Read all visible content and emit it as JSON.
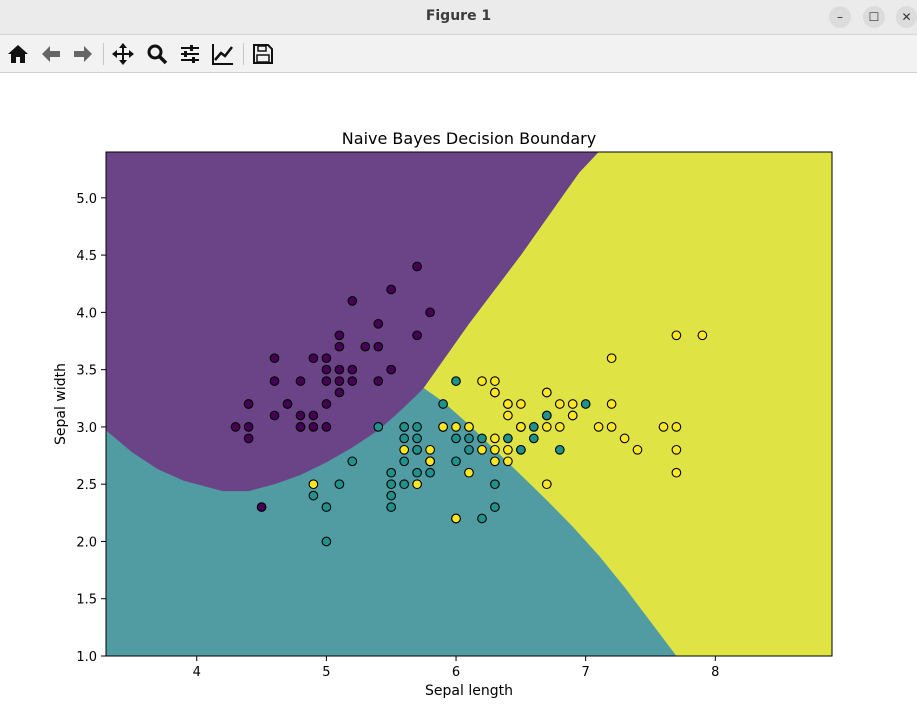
{
  "window": {
    "title": "Figure 1",
    "controls": {
      "minimize": "–",
      "maximize": "☐",
      "close": "✕"
    }
  },
  "toolbar": {
    "icons": [
      "home-icon",
      "back-arrow-icon",
      "forward-arrow-icon",
      "pan-icon",
      "zoom-icon",
      "configure-subplots-icon",
      "edit-axis-icon",
      "save-icon"
    ]
  },
  "chart_data": {
    "type": "scatter",
    "title": "Naive Bayes Decision Boundary",
    "xlabel": "Sepal length",
    "ylabel": "Sepal width",
    "xlim": [
      3.3,
      8.9
    ],
    "ylim": [
      1.0,
      5.4
    ],
    "xticks": [
      4,
      5,
      6,
      7,
      8
    ],
    "yticks": [
      1.0,
      1.5,
      2.0,
      2.5,
      3.0,
      3.5,
      4.0,
      4.5,
      5.0
    ],
    "grid": false,
    "colors": {
      "class0": "#440154",
      "class1": "#21918c",
      "class2": "#fde725",
      "region0": "#6a4487",
      "region1": "#519ba3",
      "region2": "#dfe444",
      "edge": "#000000"
    },
    "region_boundaries": {
      "class0_lower": [
        [
          3.3,
          2.97
        ],
        [
          3.5,
          2.78
        ],
        [
          3.7,
          2.63
        ],
        [
          3.9,
          2.53
        ],
        [
          4.1,
          2.47
        ],
        [
          4.2,
          2.44
        ],
        [
          4.4,
          2.44
        ],
        [
          4.6,
          2.5
        ],
        [
          4.8,
          2.58
        ],
        [
          5.0,
          2.69
        ],
        [
          5.2,
          2.82
        ],
        [
          5.4,
          2.97
        ],
        [
          5.55,
          3.12
        ],
        [
          5.7,
          3.28
        ],
        [
          5.75,
          3.34
        ],
        [
          5.95,
          3.66
        ],
        [
          6.1,
          3.9
        ],
        [
          6.3,
          4.2
        ],
        [
          6.5,
          4.5
        ],
        [
          6.7,
          4.82
        ],
        [
          6.95,
          5.22
        ],
        [
          7.1,
          5.4
        ]
      ],
      "class1_class2": [
        [
          5.75,
          3.34
        ],
        [
          5.9,
          3.22
        ],
        [
          6.1,
          3.02
        ],
        [
          6.3,
          2.8
        ],
        [
          6.5,
          2.58
        ],
        [
          6.7,
          2.36
        ],
        [
          6.9,
          2.13
        ],
        [
          7.1,
          1.88
        ],
        [
          7.3,
          1.6
        ],
        [
          7.5,
          1.3
        ],
        [
          7.7,
          1.0
        ]
      ]
    },
    "series": [
      {
        "class": 0,
        "points": [
          [
            5.1,
            3.5
          ],
          [
            4.9,
            3.0
          ],
          [
            4.7,
            3.2
          ],
          [
            4.6,
            3.1
          ],
          [
            5.0,
            3.6
          ],
          [
            5.4,
            3.9
          ],
          [
            4.6,
            3.4
          ],
          [
            5.0,
            3.4
          ],
          [
            4.4,
            2.9
          ],
          [
            4.9,
            3.1
          ],
          [
            5.4,
            3.7
          ],
          [
            4.8,
            3.4
          ],
          [
            4.8,
            3.0
          ],
          [
            4.3,
            3.0
          ],
          [
            5.8,
            4.0
          ],
          [
            5.7,
            4.4
          ],
          [
            5.1,
            3.8
          ],
          [
            5.7,
            3.8
          ],
          [
            5.4,
            3.4
          ],
          [
            4.6,
            3.6
          ],
          [
            5.1,
            3.3
          ],
          [
            5.0,
            3.0
          ],
          [
            5.2,
            3.5
          ],
          [
            5.2,
            3.4
          ],
          [
            4.7,
            3.2
          ],
          [
            4.8,
            3.1
          ],
          [
            5.2,
            4.1
          ],
          [
            5.5,
            4.2
          ],
          [
            5.0,
            3.2
          ],
          [
            5.5,
            3.5
          ],
          [
            4.4,
            3.0
          ],
          [
            4.5,
            2.3
          ],
          [
            4.4,
            3.2
          ],
          [
            5.0,
            3.5
          ],
          [
            5.3,
            3.7
          ],
          [
            5.1,
            3.7
          ],
          [
            4.9,
            3.6
          ],
          [
            4.8,
            3.0
          ],
          [
            5.1,
            3.4
          ],
          [
            4.4,
            3.2
          ]
        ]
      },
      {
        "class": 1,
        "points": [
          [
            7.0,
            3.2
          ],
          [
            6.4,
            3.2
          ],
          [
            6.9,
            3.1
          ],
          [
            5.5,
            2.3
          ],
          [
            6.5,
            2.8
          ],
          [
            5.7,
            2.8
          ],
          [
            6.3,
            3.3
          ],
          [
            4.9,
            2.4
          ],
          [
            6.6,
            2.9
          ],
          [
            5.2,
            2.7
          ],
          [
            5.0,
            2.0
          ],
          [
            5.9,
            3.0
          ],
          [
            6.0,
            2.2
          ],
          [
            6.1,
            2.9
          ],
          [
            5.6,
            2.9
          ],
          [
            6.7,
            3.1
          ],
          [
            5.6,
            3.0
          ],
          [
            5.8,
            2.7
          ],
          [
            6.2,
            2.2
          ],
          [
            5.6,
            2.5
          ],
          [
            5.9,
            3.2
          ],
          [
            6.1,
            2.8
          ],
          [
            6.3,
            2.5
          ],
          [
            6.4,
            2.9
          ],
          [
            6.6,
            3.0
          ],
          [
            6.8,
            2.8
          ],
          [
            6.0,
            2.9
          ],
          [
            5.7,
            2.6
          ],
          [
            5.5,
            2.4
          ],
          [
            5.5,
            2.5
          ],
          [
            5.8,
            2.7
          ],
          [
            6.0,
            2.7
          ],
          [
            5.4,
            3.0
          ],
          [
            6.0,
            3.4
          ],
          [
            6.7,
            3.1
          ],
          [
            6.3,
            2.3
          ],
          [
            5.6,
            3.0
          ],
          [
            5.5,
            2.6
          ],
          [
            6.1,
            3.0
          ],
          [
            5.8,
            2.6
          ],
          [
            5.0,
            2.3
          ],
          [
            5.6,
            2.7
          ],
          [
            5.7,
            3.0
          ],
          [
            5.7,
            2.9
          ],
          [
            6.2,
            2.9
          ],
          [
            5.1,
            2.5
          ],
          [
            5.7,
            2.8
          ],
          [
            6.5,
            2.8
          ]
        ]
      },
      {
        "class": 2,
        "points": [
          [
            6.3,
            3.3
          ],
          [
            5.8,
            2.7
          ],
          [
            7.1,
            3.0
          ],
          [
            6.3,
            2.9
          ],
          [
            6.5,
            3.0
          ],
          [
            7.6,
            3.0
          ],
          [
            4.9,
            2.5
          ],
          [
            7.3,
            2.9
          ],
          [
            6.7,
            2.5
          ],
          [
            7.2,
            3.6
          ],
          [
            6.5,
            3.2
          ],
          [
            6.4,
            2.7
          ],
          [
            6.8,
            3.0
          ],
          [
            5.7,
            2.5
          ],
          [
            5.8,
            2.8
          ],
          [
            6.4,
            3.2
          ],
          [
            6.5,
            3.0
          ],
          [
            7.7,
            3.8
          ],
          [
            7.7,
            2.6
          ],
          [
            6.0,
            2.2
          ],
          [
            6.9,
            3.2
          ],
          [
            5.6,
            2.8
          ],
          [
            7.7,
            2.8
          ],
          [
            6.3,
            2.7
          ],
          [
            6.7,
            3.3
          ],
          [
            7.2,
            3.2
          ],
          [
            6.2,
            2.8
          ],
          [
            6.1,
            3.0
          ],
          [
            6.4,
            2.8
          ],
          [
            7.2,
            3.0
          ],
          [
            7.4,
            2.8
          ],
          [
            7.9,
            3.8
          ],
          [
            6.3,
            2.8
          ],
          [
            6.1,
            2.6
          ],
          [
            7.7,
            3.0
          ],
          [
            6.3,
            3.4
          ],
          [
            6.4,
            3.1
          ],
          [
            6.0,
            3.0
          ],
          [
            6.9,
            3.1
          ],
          [
            6.7,
            3.0
          ],
          [
            5.8,
            2.7
          ],
          [
            6.8,
            3.2
          ],
          [
            6.7,
            3.3
          ],
          [
            6.2,
            3.4
          ],
          [
            5.9,
            3.0
          ],
          [
            6.5,
            3.0
          ]
        ]
      }
    ]
  }
}
